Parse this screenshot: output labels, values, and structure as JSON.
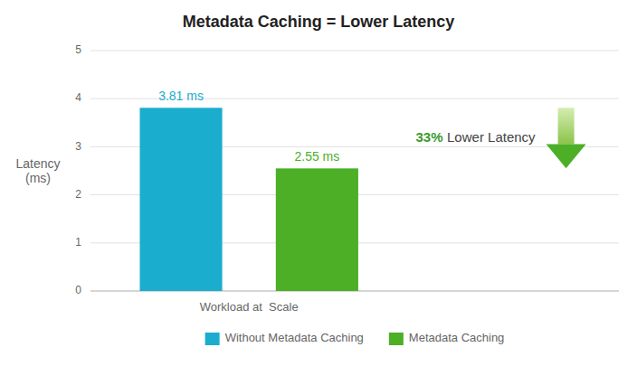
{
  "chart_data": {
    "type": "bar",
    "title": "Metadata Caching = Lower Latency",
    "ylabel": "Latency\n(ms)",
    "categories": [
      "Workload at  Scale"
    ],
    "series": [
      {
        "name": "Without Metadata Caching",
        "color": "#1AADCE",
        "values": [
          3.81
        ],
        "value_labels": [
          "3.81 ms"
        ]
      },
      {
        "name": "Metadata Caching",
        "color": "#4CAF26",
        "values": [
          2.55
        ],
        "value_labels": [
          "2.55 ms"
        ]
      }
    ],
    "ylim": [
      0,
      5
    ],
    "yticks": [
      0,
      1,
      2,
      3,
      4,
      5
    ],
    "grid": true,
    "legend": "bottom",
    "data_labels": true,
    "annotations": [
      {
        "text": "33%",
        "color": "#3A9B2E"
      },
      {
        "text": "Lower Latency",
        "color": "#444444"
      }
    ]
  }
}
